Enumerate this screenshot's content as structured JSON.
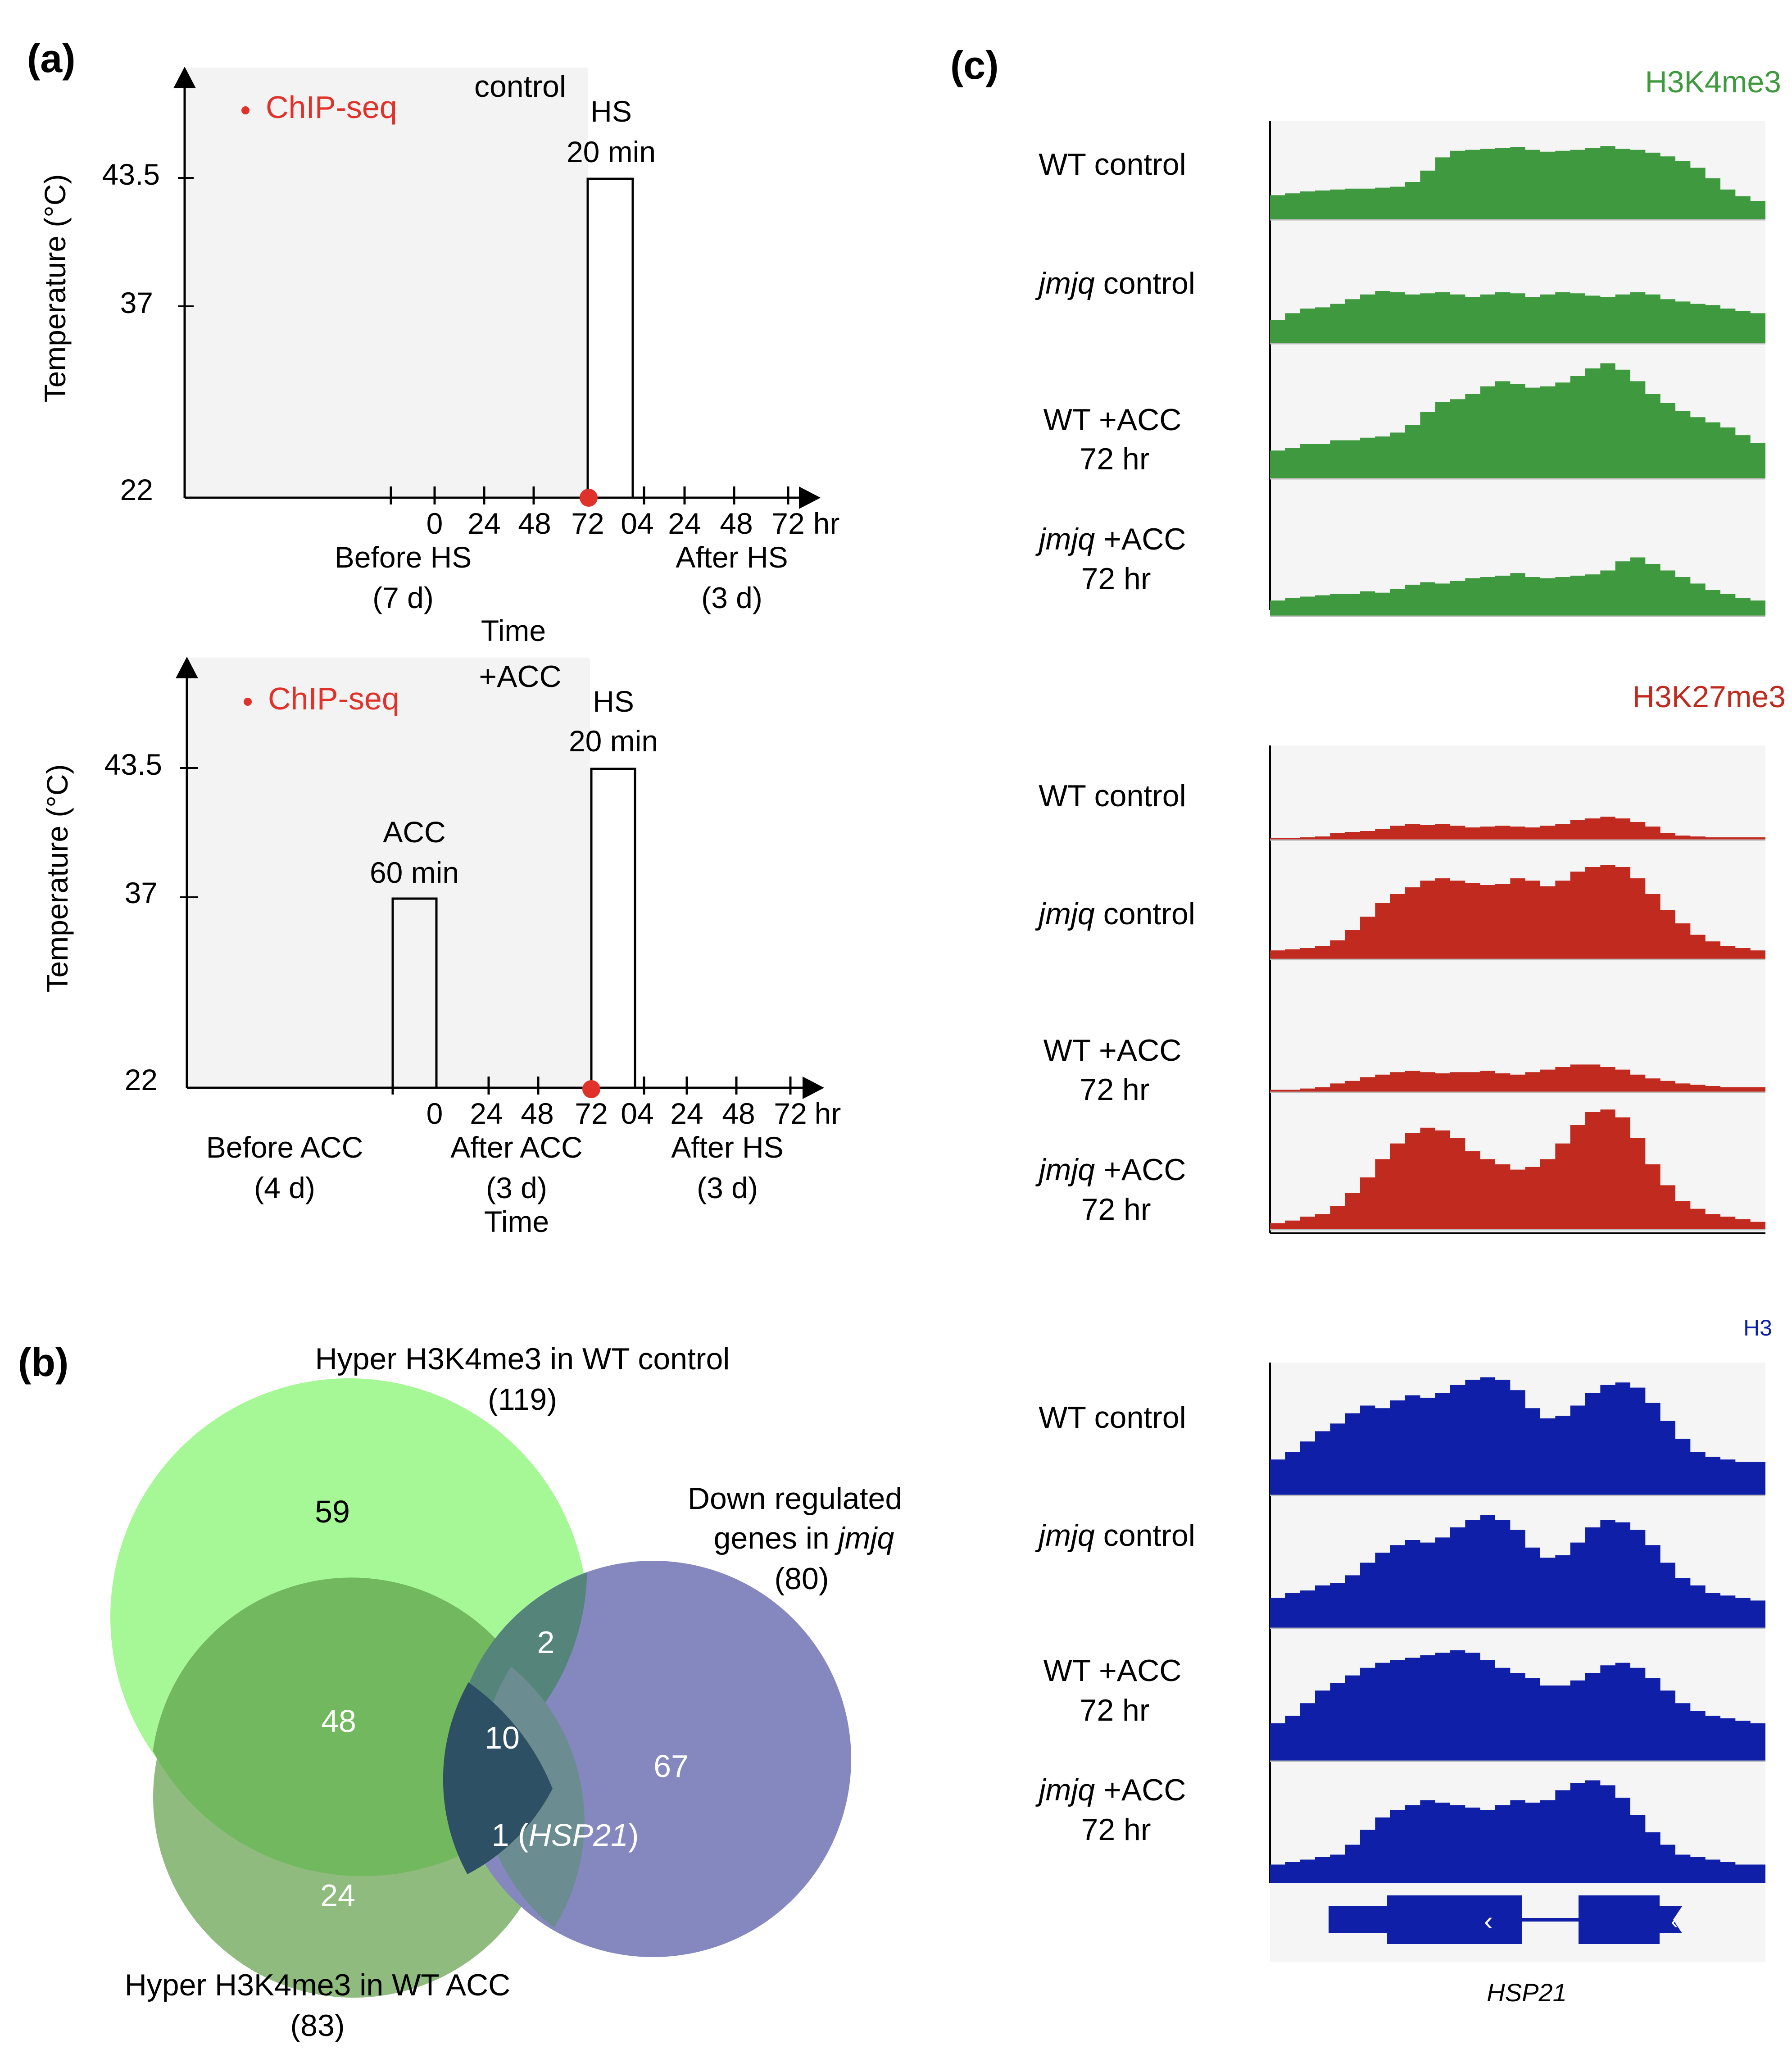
{
  "panel_labels": {
    "a": "(a)",
    "b": "(b)",
    "c": "(c)"
  },
  "colors": {
    "chip_red": "#e0322a",
    "shade": "#f3f3f3",
    "green_track": "#3f993f",
    "red_track": "#c12a1f",
    "blue_track": "#0f1fa7",
    "venn_light_green": "#a6f795",
    "venn_dark_green": "#8fbb7e",
    "venn_blue": "#8488bf"
  },
  "panel_a": {
    "top": {
      "ylabel": "Temperature (°C)",
      "ytick_labels": [
        "43.5",
        "37",
        "22"
      ],
      "legend": "ChIP-seq",
      "condition": "control",
      "hs_label": [
        "HS",
        "20 min"
      ],
      "xtick_labels": [
        "0",
        "24",
        "48",
        "72",
        "04",
        "24",
        "48",
        "72",
        "hr"
      ],
      "phase_labels": [
        [
          "Before HS",
          "(7 d)"
        ],
        [
          "After HS",
          "(3 d)"
        ]
      ],
      "xlabel": "Time"
    },
    "bottom": {
      "ylabel": "Temperature (°C)",
      "ytick_labels": [
        "43.5",
        "37",
        "22"
      ],
      "legend": "ChIP-seq",
      "condition": "+ACC",
      "hs_label": [
        "HS",
        "20 min"
      ],
      "acc_label": [
        "ACC",
        "60 min"
      ],
      "xtick_labels": [
        "0",
        "24",
        "48",
        "72",
        "04",
        "24",
        "48",
        "72",
        "hr"
      ],
      "phase_labels": [
        [
          "Before ACC",
          "(4 d)"
        ],
        [
          "After ACC",
          "(3 d)"
        ],
        [
          "After HS",
          "(3 d)"
        ]
      ],
      "xlabel": "Time"
    }
  },
  "panel_b": {
    "sets": [
      {
        "label": "Hyper H3K4me3 in WT control",
        "count": "(119)"
      },
      {
        "label": "Hyper H3K4me3 in WT ACC",
        "count": "(83)"
      },
      {
        "label_line1": "Down regulated",
        "label_line2_pre": "genes in ",
        "label_line2_ital": "jmjq",
        "count": "(80)"
      }
    ],
    "regions": {
      "control_only": "59",
      "control_acc": "48",
      "control_down": "2",
      "all_three": "10",
      "down_only": "67",
      "acc_down_pre": "1 (",
      "acc_down_gene": "HSP21",
      "acc_down_post": ")",
      "acc_only": "24"
    }
  },
  "panel_c": {
    "groups": [
      {
        "mark": "H3K4me3",
        "tracks": [
          {
            "label_ital": "",
            "label": "WT control",
            "label2": "",
            "profile": [
              0.26,
              0.28,
              0.3,
              0.31,
              0.32,
              0.33,
              0.33,
              0.34,
              0.35,
              0.4,
              0.52,
              0.66,
              0.73,
              0.74,
              0.75,
              0.76,
              0.77,
              0.74,
              0.72,
              0.73,
              0.74,
              0.76,
              0.78,
              0.75,
              0.74,
              0.71,
              0.67,
              0.62,
              0.55,
              0.44,
              0.32,
              0.25,
              0.2
            ]
          },
          {
            "label_ital": "jmjq",
            "label": " control",
            "label2": "",
            "profile": [
              0.2,
              0.26,
              0.3,
              0.31,
              0.34,
              0.38,
              0.42,
              0.45,
              0.44,
              0.42,
              0.43,
              0.44,
              0.42,
              0.4,
              0.42,
              0.44,
              0.43,
              0.4,
              0.42,
              0.44,
              0.43,
              0.41,
              0.4,
              0.42,
              0.44,
              0.42,
              0.38,
              0.36,
              0.34,
              0.33,
              0.3,
              0.28,
              0.26
            ]
          },
          {
            "label_ital": "",
            "label": "WT +ACC",
            "label2": "72 hr",
            "profile": [
              0.22,
              0.24,
              0.27,
              0.27,
              0.3,
              0.3,
              0.32,
              0.33,
              0.36,
              0.42,
              0.52,
              0.6,
              0.62,
              0.66,
              0.72,
              0.76,
              0.74,
              0.71,
              0.72,
              0.75,
              0.8,
              0.86,
              0.9,
              0.85,
              0.76,
              0.66,
              0.59,
              0.53,
              0.48,
              0.44,
              0.4,
              0.34,
              0.28
            ]
          },
          {
            "label_ital": "jmjq",
            "label": " +ACC",
            "label2": "72 hr",
            "profile": [
              0.12,
              0.14,
              0.15,
              0.16,
              0.17,
              0.17,
              0.19,
              0.18,
              0.21,
              0.24,
              0.26,
              0.25,
              0.27,
              0.29,
              0.3,
              0.31,
              0.33,
              0.3,
              0.29,
              0.3,
              0.31,
              0.32,
              0.35,
              0.42,
              0.45,
              0.4,
              0.35,
              0.3,
              0.25,
              0.2,
              0.17,
              0.14,
              0.12
            ]
          }
        ]
      },
      {
        "mark": "H3K27me3",
        "tracks": [
          {
            "label_ital": "",
            "label": "WT control",
            "label2": "",
            "profile": [
              0.02,
              0.02,
              0.03,
              0.04,
              0.08,
              0.09,
              0.1,
              0.12,
              0.16,
              0.18,
              0.17,
              0.18,
              0.16,
              0.14,
              0.15,
              0.16,
              0.15,
              0.14,
              0.16,
              0.18,
              0.22,
              0.24,
              0.26,
              0.24,
              0.2,
              0.15,
              0.08,
              0.05,
              0.04,
              0.03,
              0.03,
              0.03,
              0.03
            ]
          },
          {
            "label_ital": "jmjq",
            "label": " control",
            "label2": "",
            "profile": [
              0.08,
              0.09,
              0.1,
              0.12,
              0.17,
              0.26,
              0.38,
              0.5,
              0.58,
              0.64,
              0.7,
              0.72,
              0.7,
              0.68,
              0.66,
              0.67,
              0.72,
              0.7,
              0.65,
              0.7,
              0.78,
              0.82,
              0.84,
              0.82,
              0.72,
              0.58,
              0.44,
              0.32,
              0.22,
              0.16,
              0.12,
              0.1,
              0.08
            ]
          },
          {
            "label_ital": "",
            "label": "WT +ACC",
            "label2": "72 hr",
            "profile": [
              0.02,
              0.02,
              0.03,
              0.04,
              0.07,
              0.09,
              0.12,
              0.14,
              0.16,
              0.17,
              0.16,
              0.15,
              0.16,
              0.16,
              0.17,
              0.15,
              0.14,
              0.16,
              0.18,
              0.2,
              0.22,
              0.22,
              0.2,
              0.18,
              0.14,
              0.11,
              0.09,
              0.07,
              0.06,
              0.05,
              0.04,
              0.04,
              0.04
            ]
          },
          {
            "label_ital": "jmjq",
            "label": " +ACC",
            "label2": "72 hr",
            "profile": [
              0.05,
              0.07,
              0.1,
              0.12,
              0.18,
              0.28,
              0.4,
              0.54,
              0.66,
              0.74,
              0.78,
              0.76,
              0.7,
              0.6,
              0.54,
              0.5,
              0.46,
              0.48,
              0.54,
              0.66,
              0.8,
              0.9,
              0.92,
              0.86,
              0.7,
              0.5,
              0.34,
              0.22,
              0.16,
              0.12,
              0.1,
              0.08,
              0.06
            ]
          }
        ]
      },
      {
        "mark": "H3",
        "tracks": [
          {
            "label_ital": "",
            "label": "WT control",
            "label2": "",
            "profile": [
              0.28,
              0.34,
              0.42,
              0.5,
              0.56,
              0.64,
              0.7,
              0.68,
              0.74,
              0.78,
              0.76,
              0.8,
              0.86,
              0.9,
              0.92,
              0.9,
              0.82,
              0.68,
              0.6,
              0.62,
              0.7,
              0.8,
              0.86,
              0.88,
              0.84,
              0.72,
              0.58,
              0.44,
              0.34,
              0.3,
              0.28,
              0.26,
              0.26
            ]
          },
          {
            "label_ital": "jmjq",
            "label": " control",
            "label2": "",
            "profile": [
              0.24,
              0.28,
              0.3,
              0.34,
              0.36,
              0.42,
              0.52,
              0.6,
              0.66,
              0.7,
              0.68,
              0.72,
              0.8,
              0.86,
              0.9,
              0.86,
              0.78,
              0.64,
              0.56,
              0.58,
              0.68,
              0.8,
              0.86,
              0.84,
              0.78,
              0.66,
              0.52,
              0.4,
              0.34,
              0.28,
              0.26,
              0.24,
              0.22
            ]
          },
          {
            "label_ital": "",
            "label": "WT +ACC",
            "label2": "72 hr",
            "profile": [
              0.3,
              0.36,
              0.46,
              0.56,
              0.62,
              0.68,
              0.74,
              0.78,
              0.8,
              0.82,
              0.84,
              0.86,
              0.88,
              0.86,
              0.8,
              0.74,
              0.7,
              0.66,
              0.6,
              0.6,
              0.64,
              0.7,
              0.76,
              0.78,
              0.74,
              0.66,
              0.56,
              0.46,
              0.4,
              0.36,
              0.34,
              0.32,
              0.3
            ]
          },
          {
            "label_ital": "jmjq",
            "label": " +ACC",
            "label2": "72 hr",
            "profile": [
              0.22,
              0.24,
              0.26,
              0.28,
              0.3,
              0.38,
              0.5,
              0.6,
              0.66,
              0.7,
              0.74,
              0.72,
              0.7,
              0.68,
              0.66,
              0.7,
              0.74,
              0.72,
              0.74,
              0.82,
              0.88,
              0.9,
              0.86,
              0.76,
              0.62,
              0.48,
              0.38,
              0.3,
              0.28,
              0.26,
              0.24,
              0.22,
              0.22
            ]
          }
        ]
      }
    ],
    "gene_label": "HSP21"
  }
}
